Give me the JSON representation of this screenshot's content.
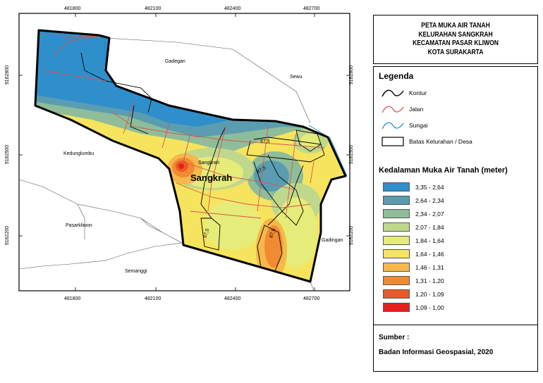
{
  "map": {
    "x_ticks": [
      "481800",
      "482100",
      "482400",
      "482700"
    ],
    "y_ticks": [
      "9162800",
      "9162500",
      "9162200"
    ],
    "places": {
      "gadegan": "Gadegan",
      "sewu": "Sewu",
      "kedunglumbu": "Kedunglumbu",
      "sangkrah_small": "Sangkrah",
      "sangkrah_big": "Sangkrah",
      "pasarkliwon": "Pasarkliwon",
      "gadingan": "Gadingan",
      "semanggi": "Semanggi"
    },
    "contour_labels": [
      "87,5",
      "87,5",
      "87,5",
      "87,5"
    ]
  },
  "title": {
    "lines": [
      "PETA MUKA AIR TANAH",
      "KELURAHAN SANGKRAH",
      "KECAMATAN PASAR KLIWON",
      "KOTA SURAKARTA"
    ]
  },
  "legend": {
    "heading": "Legenda",
    "items": [
      {
        "label": "Kontur",
        "icon": "contour-line-icon"
      },
      {
        "label": "Jalan",
        "icon": "road-line-icon"
      },
      {
        "label": "Sungai",
        "icon": "river-line-icon"
      },
      {
        "label": "Batas Kelurahan / Desa",
        "icon": "boundary-box-icon"
      }
    ],
    "depth_heading": "Kedalaman Muka Air Tanah (meter)",
    "classes": [
      {
        "label": "3,35 - 2,64",
        "color": "#2e8fcb"
      },
      {
        "label": "2,64 - 2,34",
        "color": "#5b9db0"
      },
      {
        "label": "2,34 - 2,07",
        "color": "#8fbd9a"
      },
      {
        "label": "2,07 - 1,84",
        "color": "#bfd88c"
      },
      {
        "label": "1,84 - 1,64",
        "color": "#e6ec79"
      },
      {
        "label": "1,64 - 1,46",
        "color": "#f6e45e"
      },
      {
        "label": "1,46 - 1,31",
        "color": "#f6b84a"
      },
      {
        "label": "1,31 - 1,20",
        "color": "#f18b33"
      },
      {
        "label": "1,20 - 1,09",
        "color": "#ec5a26"
      },
      {
        "label": "1,09 - 1,00",
        "color": "#e61e1e"
      }
    ]
  },
  "source": {
    "heading": "Sumber :",
    "text": "Badan Informasi Geospasial, 2020"
  }
}
